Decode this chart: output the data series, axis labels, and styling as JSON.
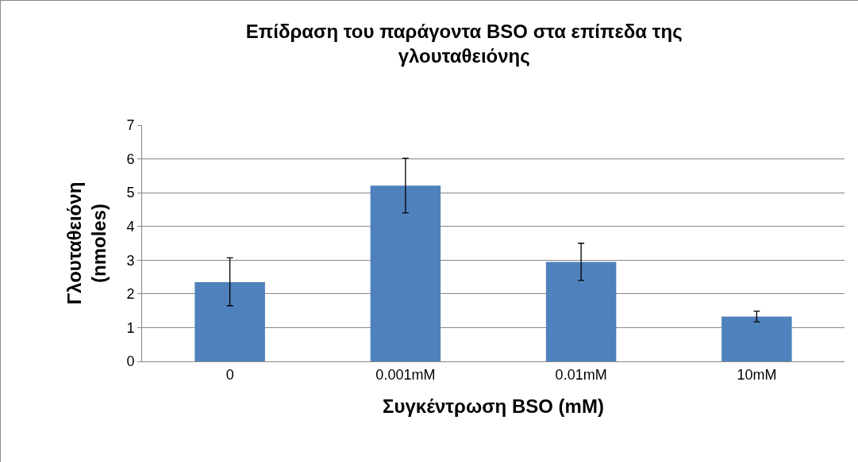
{
  "chart_data": {
    "type": "bar",
    "title": "Επίδραση του παράγοντα BSO στα επίπεδα της\nγλουταθειόνης",
    "xlabel": "Συγκέντρωση BSO (mM)",
    "ylabel": "Γλουταθειόνη\n(nmoles)",
    "categories": [
      "0",
      "0.001mM",
      "0.01mM",
      "10mM"
    ],
    "values": [
      2.35,
      5.21,
      2.95,
      1.33
    ],
    "errors": [
      [
        1.65,
        3.07
      ],
      [
        4.4,
        6.02
      ],
      [
        2.4,
        3.5
      ],
      [
        1.17,
        1.49
      ]
    ],
    "color": "#4f81bd",
    "ylim": [
      0,
      7
    ],
    "yticks": [
      0,
      1,
      2,
      3,
      4,
      5,
      6,
      7
    ],
    "grid": "y"
  }
}
